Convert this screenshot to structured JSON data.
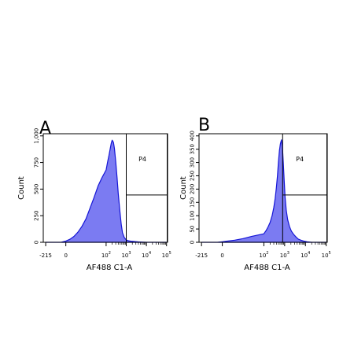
{
  "chart_data": [
    {
      "type": "area",
      "panel_label": "A",
      "xlabel": "AF488 C1-A",
      "ylabel": "Count",
      "x_scale": "biexponential",
      "x_ticks": [
        {
          "value": -215,
          "base": "-215",
          "exp": ""
        },
        {
          "value": 0,
          "base": "0",
          "exp": ""
        },
        {
          "value": 100,
          "base": "10",
          "exp": "2"
        },
        {
          "value": 1000,
          "base": "10",
          "exp": "3"
        },
        {
          "value": 10000,
          "base": "10",
          "exp": "4"
        },
        {
          "value": 100000,
          "base": "10",
          "exp": "5"
        }
      ],
      "y_ticks": [
        "0",
        "250",
        "500",
        "750",
        "1,000"
      ],
      "ylim": [
        0,
        1000
      ],
      "fill_color": "#7b7bf2",
      "line_color": "#1515d6",
      "gate": {
        "name": "P4",
        "x_min": 1000,
        "x_max": 100000,
        "y_split": 0.45
      },
      "x": [
        -215,
        -50,
        0,
        10,
        20,
        30,
        40,
        50,
        60,
        70,
        80,
        90,
        100,
        120,
        140,
        160,
        180,
        200,
        230,
        260,
        300,
        350,
        400,
        480,
        560,
        650,
        800,
        1000,
        1300,
        1700,
        2200,
        3000,
        4000,
        6000,
        10000,
        100000
      ],
      "values": [
        0,
        0,
        12,
        28,
        55,
        95,
        150,
        220,
        320,
        420,
        530,
        610,
        680,
        760,
        820,
        880,
        930,
        960,
        940,
        880,
        760,
        610,
        460,
        300,
        170,
        90,
        45,
        22,
        14,
        10,
        8,
        6,
        4,
        2,
        0,
        0
      ]
    },
    {
      "type": "area",
      "panel_label": "B",
      "xlabel": "AF488 C1-A",
      "ylabel": "Count",
      "x_scale": "biexponential",
      "x_ticks": [
        {
          "value": -215,
          "base": "-215",
          "exp": ""
        },
        {
          "value": 0,
          "base": "0",
          "exp": ""
        },
        {
          "value": 100,
          "base": "10",
          "exp": "2"
        },
        {
          "value": 1000,
          "base": "10",
          "exp": "3"
        },
        {
          "value": 10000,
          "base": "10",
          "exp": "4"
        },
        {
          "value": 100000,
          "base": "10",
          "exp": "5"
        }
      ],
      "y_ticks": [
        "0",
        "50",
        "100",
        "150",
        "200",
        "250",
        "300",
        "350",
        "400"
      ],
      "ylim": [
        0,
        400
      ],
      "fill_color": "#7b7bf2",
      "line_color": "#1515d6",
      "gate": {
        "name": "P4",
        "x_min": 800,
        "x_max": 100000,
        "y_split": 0.45
      },
      "x": [
        -215,
        -50,
        0,
        10,
        30,
        50,
        70,
        100,
        130,
        160,
        200,
        250,
        300,
        350,
        400,
        450,
        500,
        560,
        620,
        700,
        780,
        860,
        950,
        1050,
        1200,
        1400,
        1700,
        2100,
        2700,
        3500,
        4500,
        6000,
        8000,
        12000,
        20000,
        100000
      ],
      "values": [
        0,
        0,
        2,
        4,
        8,
        14,
        22,
        32,
        45,
        58,
        75,
        100,
        130,
        165,
        205,
        250,
        300,
        345,
        370,
        385,
        360,
        300,
        230,
        170,
        120,
        85,
        60,
        42,
        30,
        20,
        12,
        8,
        5,
        2,
        0,
        0
      ]
    }
  ]
}
